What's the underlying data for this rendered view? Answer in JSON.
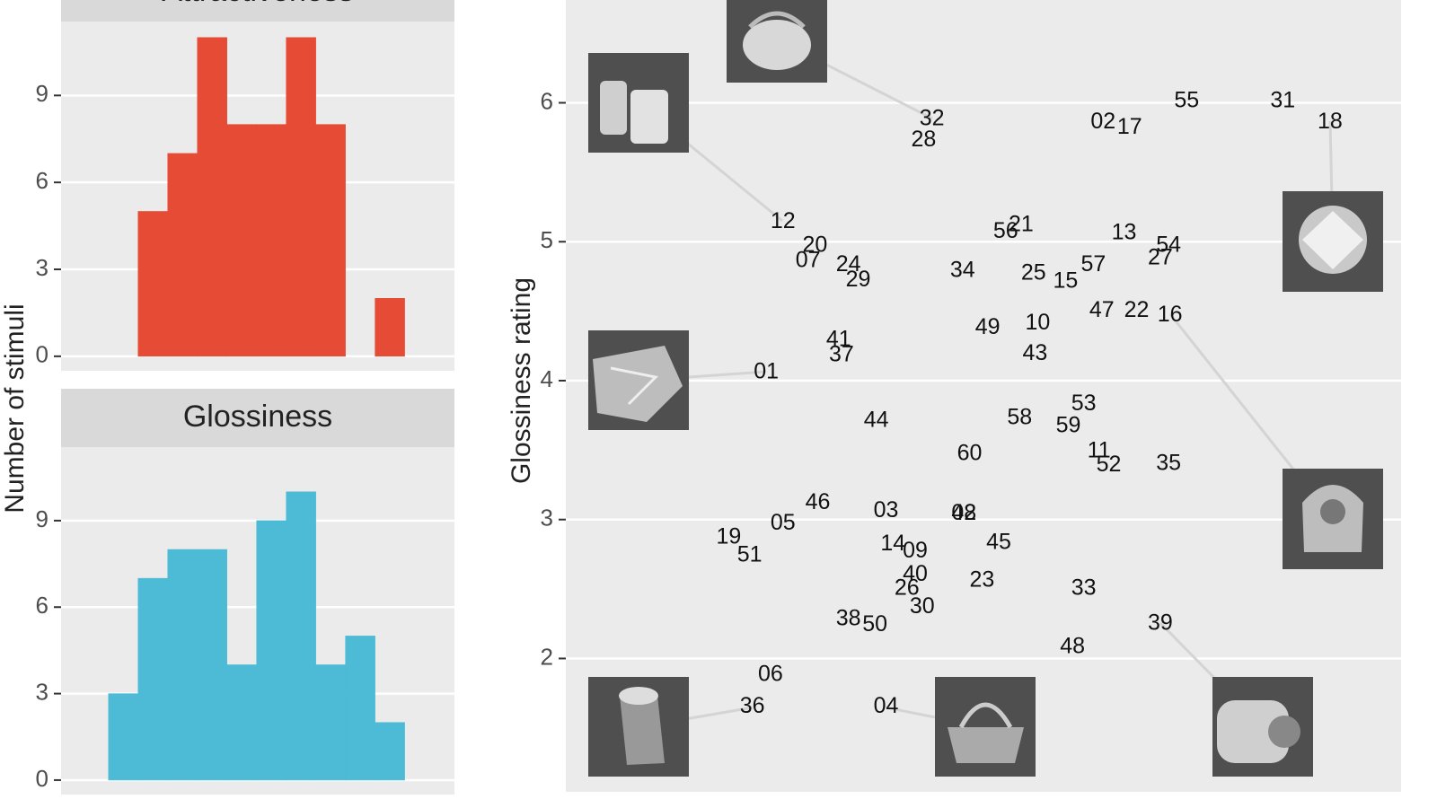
{
  "chart_data": [
    {
      "type": "histogram",
      "title": "Attractiveness",
      "ylabel": "Number of stimuli",
      "color": "#E64B35",
      "bins": [
        2.0,
        2.5,
        3.0,
        3.5,
        4.0,
        4.5,
        5.0,
        5.5,
        6.0,
        6.5
      ],
      "values": [
        5,
        7,
        11,
        8,
        8,
        11,
        8,
        0,
        2
      ],
      "xlim": [
        0.7,
        7.34
      ],
      "ylim": [
        -0.5,
        11.55
      ],
      "yticks": [
        0,
        3,
        6,
        9
      ],
      "grid": true
    },
    {
      "type": "histogram",
      "title": "Glossiness",
      "color": "#4DBBD5",
      "bins": [
        1.5,
        2.0,
        2.5,
        3.0,
        3.5,
        4.0,
        4.5,
        5.0,
        5.5,
        6.0,
        6.5
      ],
      "values": [
        3,
        7,
        8,
        8,
        4,
        9,
        10,
        4,
        5,
        2
      ],
      "xlim": [
        0.7,
        7.34
      ],
      "ylim": [
        -0.5,
        11.55
      ],
      "yticks": [
        0,
        3,
        6,
        9
      ],
      "grid": true
    },
    {
      "type": "scatter",
      "ylabel": "Glossiness rating",
      "grid": true,
      "xlim": [
        0.98,
        6.98
      ],
      "ylim": [
        1.04,
        6.74
      ],
      "yticks": [
        2,
        3,
        4,
        5,
        6
      ],
      "labels": [
        "32",
        "28",
        "02",
        "17",
        "55",
        "31",
        "18",
        "12",
        "20",
        "07",
        "24",
        "29",
        "56",
        "21",
        "34",
        "25",
        "15",
        "57",
        "13",
        "54",
        "27",
        "47",
        "22",
        "16",
        "49",
        "10",
        "43",
        "41",
        "37",
        "01",
        "44",
        "58",
        "53",
        "59",
        "60",
        "11",
        "52",
        "35",
        "46",
        "05",
        "03",
        "08",
        "42",
        "19",
        "51",
        "14",
        "09",
        "45",
        "40",
        "26",
        "23",
        "30",
        "33",
        "38",
        "50",
        "39",
        "48",
        "06",
        "36",
        "04"
      ],
      "x": [
        3.61,
        3.55,
        4.84,
        5.03,
        5.44,
        6.13,
        6.47,
        2.54,
        2.77,
        2.72,
        3.01,
        3.08,
        4.14,
        4.25,
        3.83,
        4.34,
        4.57,
        4.77,
        4.99,
        5.31,
        5.25,
        4.83,
        5.08,
        5.32,
        4.01,
        4.37,
        4.35,
        2.94,
        2.96,
        2.42,
        3.21,
        4.24,
        4.7,
        4.59,
        3.88,
        4.81,
        4.88,
        5.31,
        2.79,
        2.54,
        3.28,
        3.84,
        3.84,
        2.15,
        2.3,
        3.33,
        3.49,
        4.09,
        3.49,
        3.43,
        3.97,
        3.54,
        4.7,
        3.01,
        3.2,
        5.25,
        4.62,
        2.45,
        2.32,
        3.28
      ],
      "y": [
        5.88,
        5.73,
        5.86,
        5.82,
        6.01,
        6.01,
        5.86,
        5.14,
        4.97,
        4.86,
        4.83,
        4.72,
        5.07,
        5.12,
        4.79,
        4.77,
        4.71,
        4.83,
        5.06,
        4.97,
        4.88,
        4.5,
        4.5,
        4.47,
        4.38,
        4.41,
        4.19,
        4.29,
        4.18,
        4.06,
        3.71,
        3.73,
        3.83,
        3.67,
        3.47,
        3.49,
        3.39,
        3.4,
        3.12,
        2.97,
        3.06,
        3.04,
        3.04,
        2.87,
        2.74,
        2.82,
        2.77,
        2.83,
        2.6,
        2.5,
        2.56,
        2.37,
        2.5,
        2.28,
        2.24,
        2.25,
        2.08,
        1.88,
        1.65,
        1.65
      ]
    }
  ]
}
